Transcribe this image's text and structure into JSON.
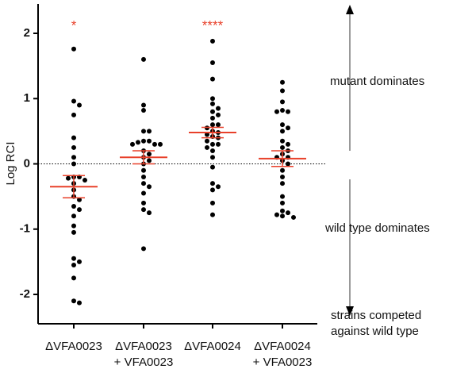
{
  "chart_data": {
    "type": "dot",
    "ylabel": "Log RCI",
    "categories": [
      [
        "ΔVFA0023"
      ],
      [
        "ΔVFA0023",
        "+ VFA0023"
      ],
      [
        "ΔVFA0024"
      ],
      [
        "ΔVFA0024",
        "+ VFA0023"
      ]
    ],
    "values": [
      [
        1.76,
        0.96,
        0.9,
        0.75,
        0.4,
        0.25,
        0.1,
        0.0,
        -0.2,
        -0.2,
        -0.22,
        -0.25,
        -0.3,
        -0.4,
        -0.5,
        -0.55,
        -0.65,
        -0.7,
        -0.8,
        -0.95,
        -1.05,
        -1.45,
        -1.5,
        -1.55,
        -1.75,
        -2.1,
        -2.13
      ],
      [
        1.6,
        0.9,
        0.82,
        0.5,
        0.5,
        0.35,
        0.35,
        0.33,
        0.3,
        0.3,
        0.3,
        0.2,
        0.15,
        0.1,
        0.05,
        0.0,
        -0.1,
        -0.2,
        -0.3,
        -0.35,
        -0.45,
        -0.6,
        -0.7,
        -0.75,
        -1.3
      ],
      [
        1.88,
        1.55,
        1.3,
        1.0,
        0.92,
        0.85,
        0.8,
        0.75,
        0.7,
        0.6,
        0.6,
        0.55,
        0.5,
        0.48,
        0.45,
        0.42,
        0.4,
        0.35,
        0.3,
        0.3,
        0.25,
        0.2,
        0.1,
        -0.05,
        -0.3,
        -0.35,
        -0.4,
        -0.6,
        -0.78
      ],
      [
        1.25,
        1.12,
        0.95,
        0.82,
        0.8,
        0.8,
        0.6,
        0.55,
        0.5,
        0.35,
        0.3,
        0.25,
        0.2,
        0.15,
        0.1,
        0.1,
        0.05,
        0.0,
        -0.1,
        -0.2,
        -0.3,
        -0.5,
        -0.6,
        -0.72,
        -0.75,
        -0.78,
        -0.8,
        -0.82
      ]
    ],
    "means": [
      -0.35,
      0.1,
      0.48,
      0.08
    ],
    "errors": [
      0.17,
      0.1,
      0.08,
      0.12
    ],
    "significance": [
      "*",
      null,
      "****",
      null
    ],
    "color": "#000000",
    "mean_color": "#e8402a",
    "ylim": [
      -2.45,
      2.45
    ],
    "yticks": [
      -2,
      -1,
      0,
      1,
      2
    ],
    "reference_line": 0,
    "annotations": [
      "mutant dominates",
      "wild type dominates",
      [
        "strains competed",
        "against wild type"
      ]
    ]
  }
}
